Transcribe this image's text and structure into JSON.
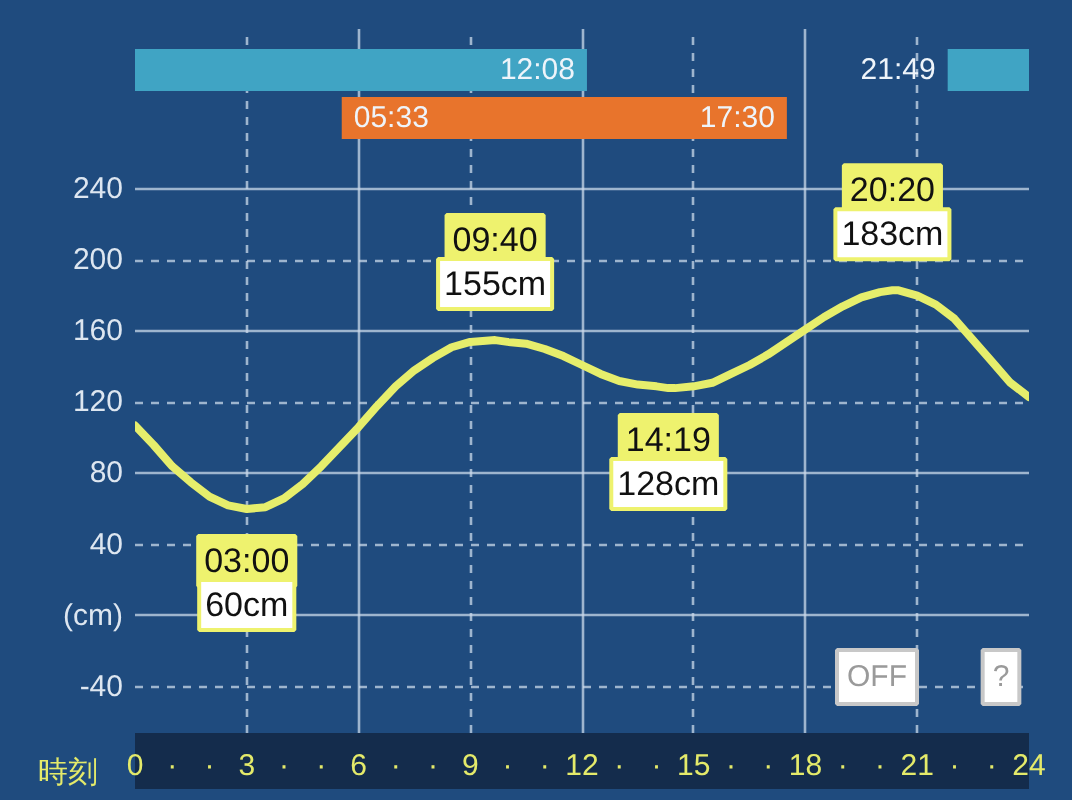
{
  "chart_data": {
    "type": "line",
    "color": "#e6ee6c",
    "x": [
      0,
      0.5,
      1,
      1.5,
      2,
      2.5,
      3,
      3.5,
      4,
      4.5,
      5,
      5.5,
      6,
      6.5,
      7,
      7.5,
      8,
      8.5,
      9,
      9.667,
      10,
      10.5,
      11,
      11.5,
      12,
      12.5,
      13,
      13.5,
      14,
      14.317,
      14.5,
      15,
      15.5,
      16,
      16.5,
      17,
      17.5,
      18,
      18.5,
      19,
      19.5,
      20,
      20.333,
      20.5,
      21,
      21.5,
      22,
      22.5,
      23,
      23.5,
      24
    ],
    "values": [
      107,
      96,
      84,
      75,
      67,
      62,
      60,
      61,
      66,
      74,
      84,
      95,
      106,
      118,
      129,
      138,
      145,
      151,
      154,
      155,
      154,
      153,
      150,
      146,
      141,
      136,
      132,
      130,
      129,
      128,
      128,
      129,
      131,
      136,
      141,
      147,
      154,
      161,
      168,
      174,
      179,
      182,
      183,
      183,
      180,
      175,
      167,
      155,
      143,
      131,
      123
    ],
    "xlim": [
      0,
      24
    ],
    "ylim": [
      -66,
      330
    ],
    "xticks": [
      0,
      {
        "value": 1,
        "label": "·"
      },
      {
        "value": 2,
        "label": "·"
      },
      3,
      {
        "value": 4,
        "label": "·"
      },
      {
        "value": 5,
        "label": "·"
      },
      6,
      {
        "value": 7,
        "label": "·"
      },
      {
        "value": 8,
        "label": "·"
      },
      9,
      {
        "value": 10,
        "label": "·"
      },
      {
        "value": 11,
        "label": "·"
      },
      12,
      {
        "value": 13,
        "label": "·"
      },
      {
        "value": 14,
        "label": "·"
      },
      15,
      {
        "value": 16,
        "label": "·"
      },
      {
        "value": 17,
        "label": "·"
      },
      18,
      {
        "value": 19,
        "label": "·"
      },
      {
        "value": 20,
        "label": "·"
      },
      21,
      {
        "value": 22,
        "label": "·"
      },
      {
        "value": 23,
        "label": "·"
      },
      24
    ],
    "yticks": [
      -40,
      {
        "value": 0,
        "label": "(cm)"
      },
      40,
      80,
      120,
      160,
      200,
      240
    ],
    "xlabel": "時刻",
    "grid": true,
    "bands": [
      {
        "axis": "x",
        "from": 0,
        "to": 12.133,
        "label": "12:08",
        "color": "#40a4c4"
      },
      {
        "axis": "x",
        "from": 21.817,
        "to": 24,
        "label": "21:49",
        "color": "#40a4c4"
      },
      {
        "axis": "x",
        "from": 5.55,
        "to": 17.5,
        "label": "05:33",
        "color": "#e8742c"
      }
    ],
    "annotations": [
      {
        "text": "03:00\n60cm",
        "x": 3,
        "y": 60
      },
      {
        "text": "09:40\n155cm",
        "x": 9.667,
        "y": 155
      },
      {
        "text": "14:19\n128cm",
        "x": 14.317,
        "y": 128
      },
      {
        "text": "20:20\n183cm",
        "x": 20.333,
        "y": 183
      },
      {
        "text": "17:30",
        "x": 17.5
      },
      "OFF",
      "?"
    ]
  }
}
